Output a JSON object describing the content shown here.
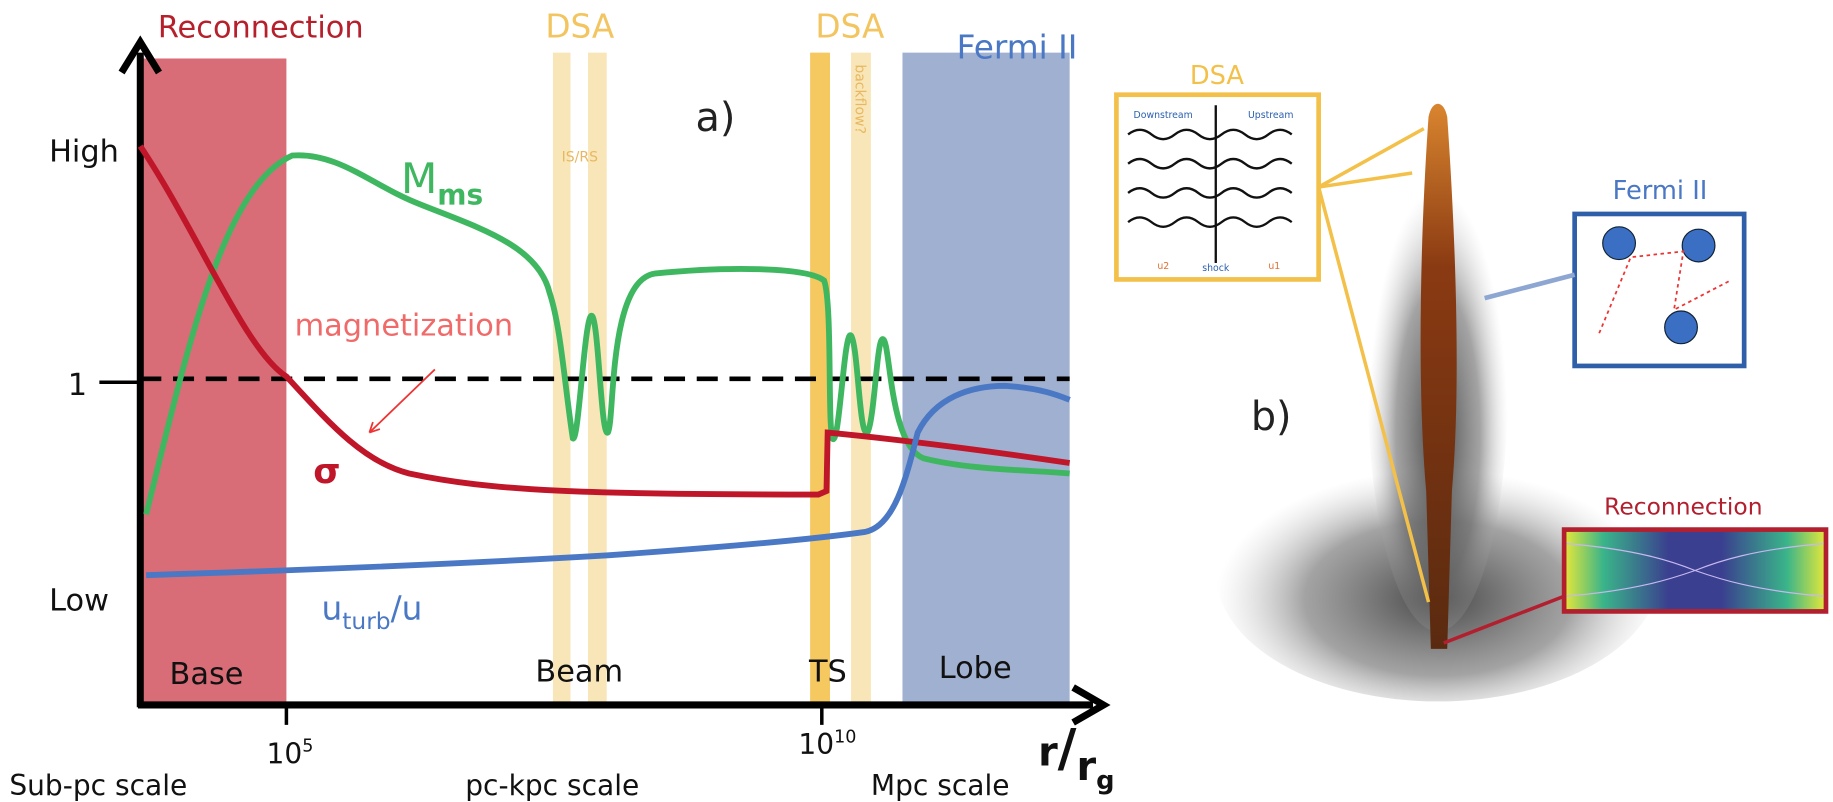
{
  "panel_a": {
    "label": "a)",
    "regions": {
      "reconnection": "Reconnection",
      "dsa_1": "DSA",
      "dsa_2": "DSA",
      "fermi": "Fermi II"
    },
    "strip_labels": {
      "is_rs": "IS/RS",
      "backflow": "backflow?"
    },
    "y_labels": {
      "high": "High",
      "one": "1",
      "low": "Low"
    },
    "curves": {
      "mach": {
        "base": "M",
        "sub": "ms"
      },
      "magnetization": "magnetization",
      "sigma": "σ",
      "turb": {
        "base": "u",
        "sub": "turb",
        "rest": "/u"
      }
    },
    "zones": {
      "base": "Base",
      "beam": "Beam",
      "ts": "TS",
      "lobe": "Lobe"
    },
    "x_ticks": [
      {
        "base": "10",
        "exp": "5"
      },
      {
        "base": "10",
        "exp": "10"
      }
    ],
    "x_label": {
      "r": "r",
      "slash": "/",
      "rg": "r",
      "g": "g"
    }
  },
  "scales": {
    "sub_pc": "Sub-pc scale",
    "pc_kpc": "pc-kpc scale",
    "mpc": "Mpc scale"
  },
  "panel_b": {
    "label": "b)",
    "dsa_inset": {
      "title": "DSA",
      "downstream": "Downstream",
      "upstream": "Upstream",
      "shock": "shock",
      "u2": "u2",
      "u1": "u1"
    },
    "fermi_inset": {
      "title": "Fermi II"
    },
    "reconnection_inset": {
      "title": "Reconnection"
    }
  }
}
